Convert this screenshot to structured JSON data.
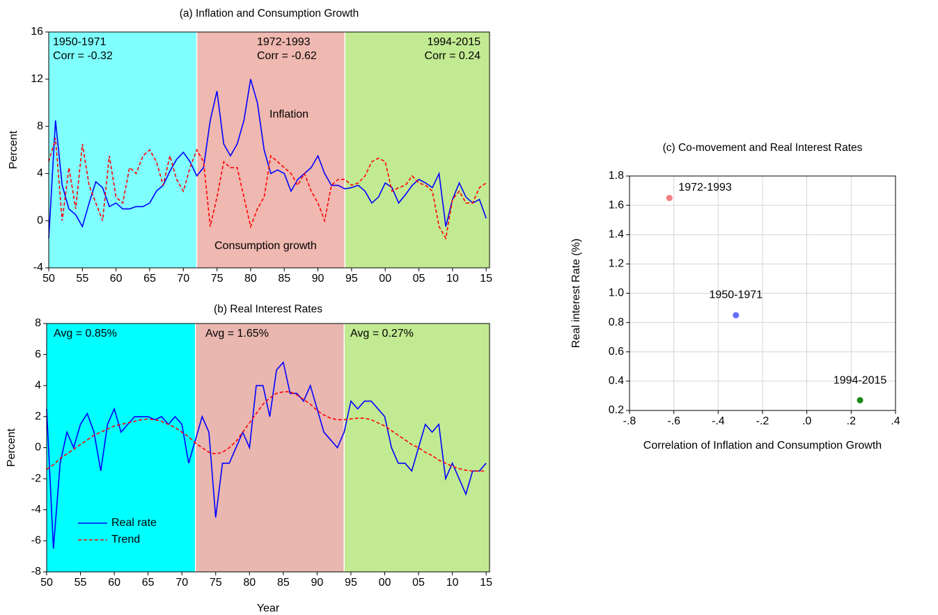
{
  "chart_data": [
    {
      "type": "line",
      "title": "(a) Inflation and Consumption Growth",
      "ylabel": "Percent",
      "xlim": [
        1950,
        2015.5
      ],
      "ylim": [
        -4,
        16
      ],
      "xticks": [
        {
          "value": 1950,
          "label": "50"
        },
        {
          "value": 1955,
          "label": "55"
        },
        {
          "value": 1960,
          "label": "60"
        },
        {
          "value": 1965,
          "label": "65"
        },
        {
          "value": 1970,
          "label": "70"
        },
        {
          "value": 1975,
          "label": "75"
        },
        {
          "value": 1980,
          "label": "80"
        },
        {
          "value": 1985,
          "label": "85"
        },
        {
          "value": 1990,
          "label": "90"
        },
        {
          "value": 1995,
          "label": "95"
        },
        {
          "value": 2000,
          "label": "00"
        },
        {
          "value": 2005,
          "label": "05"
        },
        {
          "value": 2010,
          "label": "10"
        },
        {
          "value": 2015,
          "label": "15"
        }
      ],
      "yticks": [
        -4,
        0,
        4,
        8,
        12,
        16
      ],
      "regions": [
        {
          "start": 1950,
          "color": "#80ffff",
          "label": "1950-1971",
          "note": "Corr = -0.32"
        },
        {
          "start": 1972,
          "color": "#efb8b0",
          "label": "1972-1993",
          "note": "Corr = -0.62"
        },
        {
          "start": 1994,
          "color": "#c2ea92",
          "label": "1994-2015",
          "note": "Corr = 0.24"
        }
      ],
      "annotations": [
        {
          "text": "Inflation",
          "color": "#0000ff"
        },
        {
          "text": "Consumption growth",
          "color": "#ff0000"
        }
      ],
      "x": [
        1950,
        1951,
        1952,
        1953,
        1954,
        1955,
        1956,
        1957,
        1958,
        1959,
        1960,
        1961,
        1962,
        1963,
        1964,
        1965,
        1966,
        1967,
        1968,
        1969,
        1970,
        1971,
        1972,
        1973,
        1974,
        1975,
        1976,
        1977,
        1978,
        1979,
        1980,
        1981,
        1982,
        1983,
        1984,
        1985,
        1986,
        1987,
        1988,
        1989,
        1990,
        1991,
        1992,
        1993,
        1994,
        1995,
        1996,
        1997,
        1998,
        1999,
        2000,
        2001,
        2002,
        2003,
        2004,
        2005,
        2006,
        2007,
        2008,
        2009,
        2010,
        2011,
        2012,
        2013,
        2014,
        2015
      ],
      "series": [
        {
          "name": "Inflation",
          "color": "#0000ff",
          "dashed": false,
          "values": [
            -1.5,
            8.5,
            3,
            1,
            0.5,
            -0.5,
            1.5,
            3.3,
            2.8,
            1.2,
            1.5,
            1,
            1,
            1.2,
            1.2,
            1.5,
            2.5,
            3,
            4.2,
            5.2,
            5.8,
            5,
            3.8,
            4.5,
            8.5,
            11,
            6.5,
            5.5,
            6.5,
            8.5,
            12,
            10,
            6,
            4,
            4.3,
            4,
            2.5,
            3.5,
            4,
            4.5,
            5.5,
            4,
            3,
            3,
            2.7,
            2.8,
            3,
            2.5,
            1.5,
            2,
            3.2,
            2.8,
            1.5,
            2.2,
            3,
            3.5,
            3.2,
            2.8,
            4,
            -0.5,
            1.8,
            3.2,
            2,
            1.5,
            1.8,
            0.2
          ]
        },
        {
          "name": "Consumption growth",
          "color": "#ff0000",
          "dashed": true,
          "values": [
            5,
            7,
            0,
            4.5,
            1,
            6.5,
            3,
            1.5,
            0,
            5.5,
            2,
            1.5,
            4.5,
            4,
            5.5,
            6,
            5,
            3,
            5.5,
            3.5,
            2.5,
            4.5,
            6,
            5,
            -0.5,
            2,
            5,
            4.5,
            4.5,
            2,
            -0.5,
            1,
            2,
            5.5,
            5,
            4.5,
            4,
            3,
            4,
            2.5,
            1.5,
            0,
            3,
            3.5,
            3.5,
            3,
            3.2,
            3.8,
            5,
            5.3,
            5,
            2.5,
            2.8,
            3,
            3.8,
            3.2,
            3,
            2.5,
            -0.5,
            -1.5,
            1.8,
            2.5,
            1.5,
            1.5,
            2.8,
            3.2
          ]
        }
      ]
    },
    {
      "type": "line",
      "title": "(b) Real Interest Rates",
      "ylabel": "Percent",
      "xlabel": "Year",
      "xlim": [
        1950,
        2015.5
      ],
      "ylim": [
        -8,
        8
      ],
      "xticks": [
        {
          "value": 1950,
          "label": "50"
        },
        {
          "value": 1955,
          "label": "55"
        },
        {
          "value": 1960,
          "label": "60"
        },
        {
          "value": 1965,
          "label": "65"
        },
        {
          "value": 1970,
          "label": "70"
        },
        {
          "value": 1975,
          "label": "75"
        },
        {
          "value": 1980,
          "label": "80"
        },
        {
          "value": 1985,
          "label": "85"
        },
        {
          "value": 1990,
          "label": "90"
        },
        {
          "value": 1995,
          "label": "95"
        },
        {
          "value": 2000,
          "label": "00"
        },
        {
          "value": 2005,
          "label": "05"
        },
        {
          "value": 2010,
          "label": "10"
        },
        {
          "value": 2015,
          "label": "15"
        }
      ],
      "yticks": [
        -8,
        -6,
        -4,
        -2,
        0,
        2,
        4,
        6,
        8
      ],
      "regions": [
        {
          "start": 1950,
          "color": "#00ffff",
          "note": "Avg = 0.85%"
        },
        {
          "start": 1972,
          "color": "#e9b6b0",
          "note": "Avg = 1.65%"
        },
        {
          "start": 1994,
          "color": "#c2ea92",
          "note": "Avg = 0.27%"
        }
      ],
      "legend": "lower left",
      "x": [
        1950,
        1951,
        1952,
        1953,
        1954,
        1955,
        1956,
        1957,
        1958,
        1959,
        1960,
        1961,
        1962,
        1963,
        1964,
        1965,
        1966,
        1967,
        1968,
        1969,
        1970,
        1971,
        1972,
        1973,
        1974,
        1975,
        1976,
        1977,
        1978,
        1979,
        1980,
        1981,
        1982,
        1983,
        1984,
        1985,
        1986,
        1987,
        1988,
        1989,
        1990,
        1991,
        1992,
        1993,
        1994,
        1995,
        1996,
        1997,
        1998,
        1999,
        2000,
        2001,
        2002,
        2003,
        2004,
        2005,
        2006,
        2007,
        2008,
        2009,
        2010,
        2011,
        2012,
        2013,
        2014,
        2015
      ],
      "series": [
        {
          "name": "Real rate",
          "color": "#0000ff",
          "dashed": false,
          "values": [
            2.5,
            -6.5,
            -1,
            1,
            0,
            1.5,
            2.2,
            1,
            -1.5,
            1.5,
            2.5,
            1,
            1.5,
            2,
            2,
            2,
            1.8,
            2,
            1.5,
            2,
            1.5,
            -1,
            0.5,
            2,
            1,
            -4.5,
            -1,
            -1,
            0,
            1,
            0,
            4,
            4,
            2,
            5,
            5.5,
            3.5,
            3.5,
            3,
            4,
            2.5,
            1,
            0.5,
            0,
            1,
            3,
            2.5,
            3,
            3,
            2.5,
            2,
            0,
            -1,
            -1,
            -1.5,
            0,
            1.5,
            1,
            1.5,
            -2,
            -1,
            -2,
            -3,
            -1.5,
            -1.5,
            -1
          ]
        },
        {
          "name": "Trend",
          "color": "#ff0000",
          "dashed": true,
          "values": [
            -1.4,
            -1.1,
            -0.7,
            -0.4,
            -0.1,
            0.2,
            0.5,
            0.8,
            1,
            1.2,
            1.4,
            1.5,
            1.6,
            1.7,
            1.8,
            1.85,
            1.8,
            1.7,
            1.5,
            1.3,
            1,
            0.7,
            0.3,
            0,
            -0.3,
            -0.4,
            -0.3,
            0,
            0.4,
            1,
            1.6,
            2.2,
            2.8,
            3.2,
            3.5,
            3.6,
            3.6,
            3.4,
            3.1,
            2.8,
            2.4,
            2.1,
            1.9,
            1.8,
            1.8,
            1.85,
            1.9,
            1.9,
            1.8,
            1.6,
            1.4,
            1.1,
            0.8,
            0.5,
            0.2,
            0,
            -0.3,
            -0.5,
            -0.8,
            -1,
            -1.2,
            -1.35,
            -1.45,
            -1.5,
            -1.5,
            -1.5
          ]
        }
      ]
    },
    {
      "type": "scatter",
      "title": "(c) Co-movement and Real Interest Rates",
      "xlabel": "Correlation of Inflation and Consumption Growth",
      "ylabel": "Real interest Rate (%)",
      "xlim": [
        -0.8,
        0.4
      ],
      "ylim": [
        0.2,
        1.8
      ],
      "grid": true,
      "xticks": [
        {
          "value": -0.8,
          "label": "-.8"
        },
        {
          "value": -0.6,
          "label": "-.6"
        },
        {
          "value": -0.4,
          "label": "-.4"
        },
        {
          "value": -0.2,
          "label": "-.2"
        },
        {
          "value": 0,
          "label": ".0"
        },
        {
          "value": 0.2,
          "label": ".2"
        },
        {
          "value": 0.4,
          "label": ".4"
        }
      ],
      "yticks": [
        0.2,
        0.4,
        0.6,
        0.8,
        {
          "value": 1,
          "label": "1.0"
        },
        1.2,
        1.4,
        1.6,
        1.8
      ],
      "x": [
        -0.32,
        -0.62,
        0.24
      ],
      "values": [
        0.85,
        1.65,
        0.27
      ],
      "point_labels": [
        "1950-1971",
        "1972-1993",
        "1994-2015"
      ],
      "colors": [
        "#6b6bff",
        "#f28080",
        "#1a8a1a"
      ]
    }
  ]
}
